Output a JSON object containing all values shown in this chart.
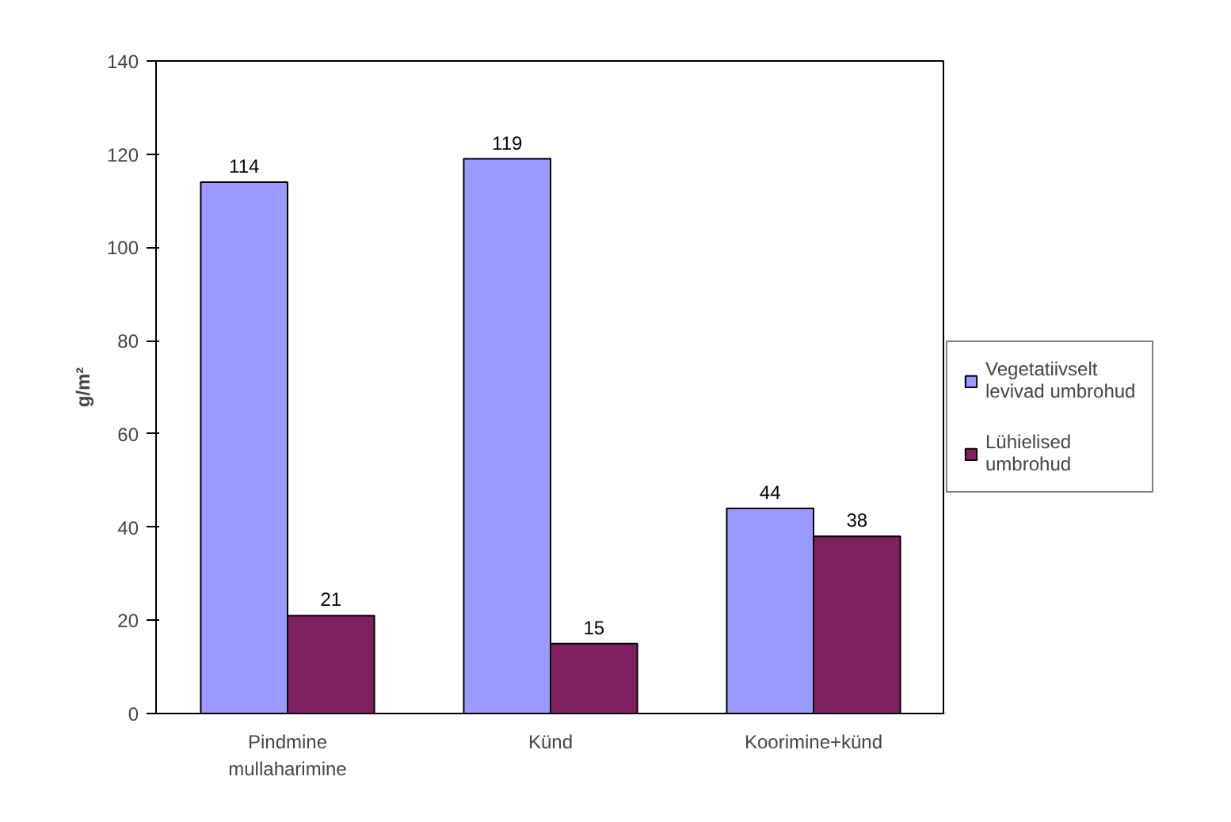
{
  "chart_data": {
    "type": "bar",
    "ylabel": "g/m²",
    "categories": [
      "Pindmine mullaharimine",
      "Künd",
      "Koorimine+künd"
    ],
    "series": [
      {
        "name": "Vegetatiivselt levivad umbrohud",
        "color": "#9999ff",
        "values": [
          114,
          119,
          44
        ]
      },
      {
        "name": "Lühielised umbrohud",
        "color": "#802060",
        "values": [
          21,
          15,
          38
        ]
      }
    ],
    "ylim": [
      0,
      140
    ],
    "yticks": [
      0,
      20,
      40,
      60,
      80,
      100,
      120,
      140
    ],
    "data_labels": true,
    "legend": "right",
    "grid": false
  }
}
